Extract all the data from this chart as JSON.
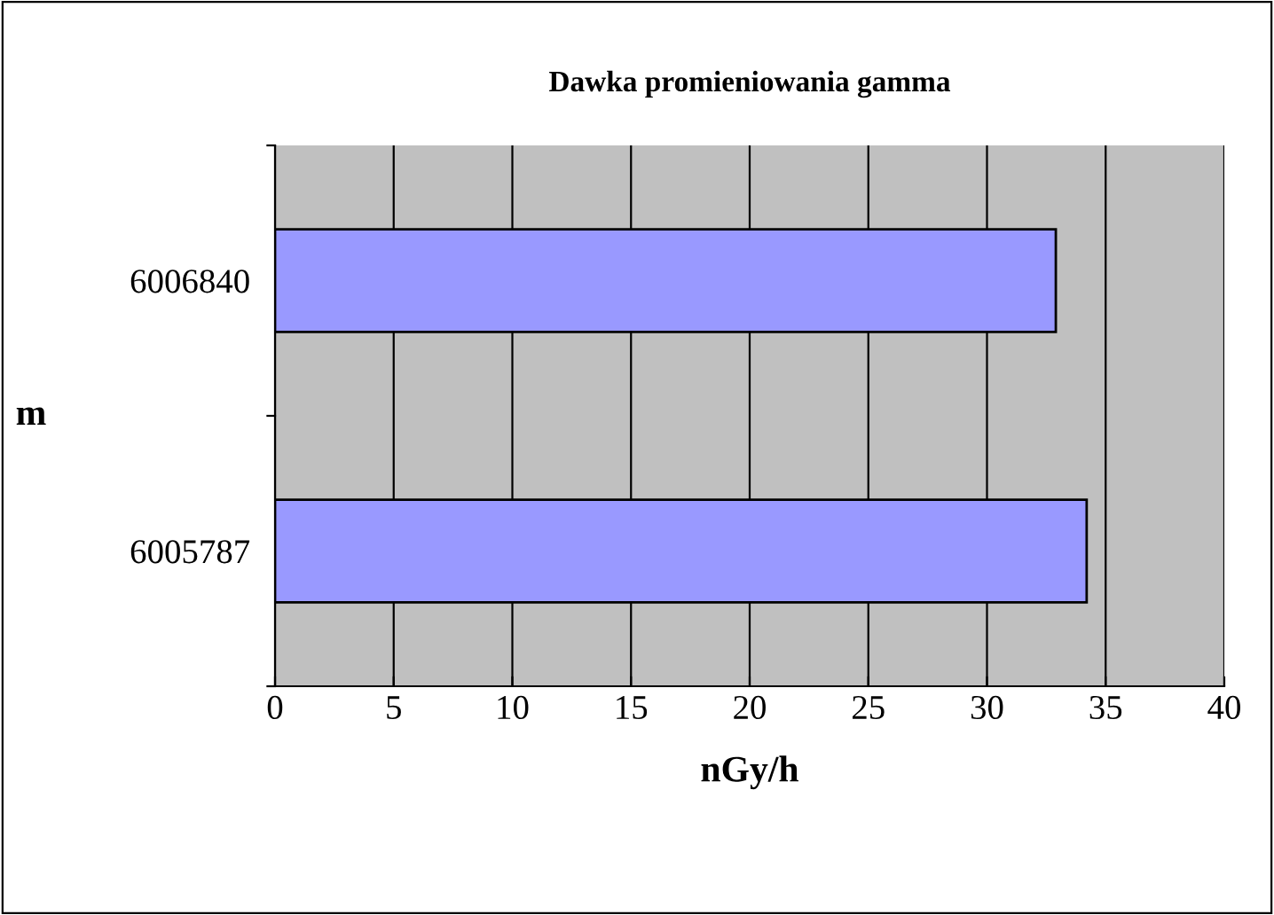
{
  "chart_data": {
    "type": "bar",
    "orientation": "horizontal",
    "title": "Dawka promieniowania gamma",
    "xlabel": "nGy/h",
    "ylabel": "m",
    "categories": [
      "6006840",
      "6005787"
    ],
    "series": [
      {
        "color": "#9999ff",
        "values": [
          32.9,
          34.2
        ]
      }
    ],
    "xlim": [
      0,
      40
    ],
    "xticks": [
      0,
      5,
      10,
      15,
      20,
      25,
      30,
      35,
      40
    ],
    "grid": "x",
    "legend": false
  }
}
